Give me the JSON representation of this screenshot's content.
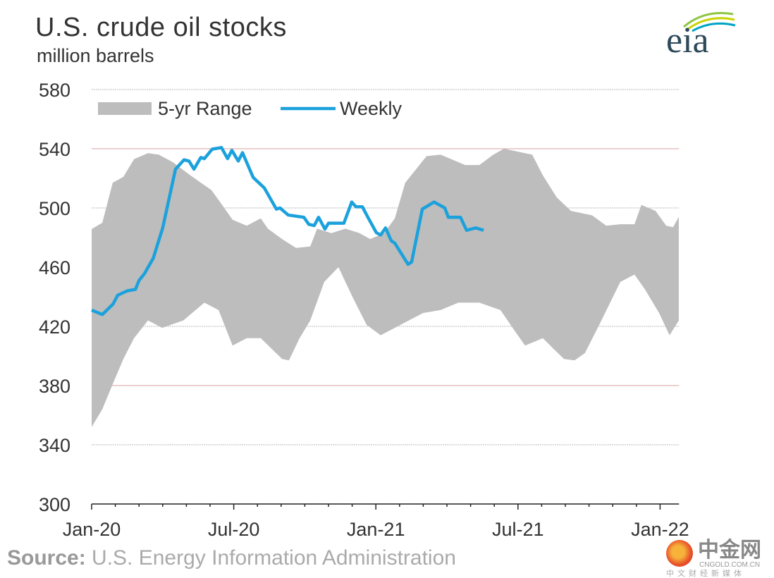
{
  "title": "U.S. crude oil stocks",
  "subtitle": "million barrels",
  "logo": "eia",
  "source_label": "Source:",
  "source_text": "U.S. Energy Information Administration",
  "watermark": {
    "name": "中金网",
    "url": "CNGOLD.COM.CN",
    "tagline": "中文财经新媒体"
  },
  "colors": {
    "range": "#bdbdbd",
    "weekly": "#1ba1dc",
    "grid": "#bbbbbb",
    "grid_red": "#d9a0a0"
  },
  "chart_data": {
    "type": "area",
    "title": "U.S. crude oil stocks",
    "ylabel": "million barrels",
    "xlabel": "",
    "ylim": [
      300,
      580
    ],
    "yticks": [
      300,
      340,
      380,
      420,
      460,
      500,
      540,
      580
    ],
    "xlim_months_from_jan20": [
      0,
      24.8
    ],
    "xticks": [
      {
        "label": "Jan-20",
        "m": 0
      },
      {
        "label": "Jul-20",
        "m": 6
      },
      {
        "label": "Jan-21",
        "m": 12
      },
      {
        "label": "Jul-21",
        "m": 18
      },
      {
        "label": "Jan-22",
        "m": 24
      }
    ],
    "legend": [
      "5-yr Range",
      "Weekly"
    ],
    "legend_position": "top-left",
    "grid": true,
    "series": [
      {
        "name": "5-yr Range",
        "type": "band",
        "upper": [
          [
            0,
            485.7
          ],
          [
            0.45,
            490
          ],
          [
            0.89,
            517
          ],
          [
            1.34,
            521
          ],
          [
            1.79,
            533
          ],
          [
            2.38,
            537
          ],
          [
            2.83,
            536
          ],
          [
            3.42,
            531
          ],
          [
            4.17,
            522
          ],
          [
            5.06,
            512
          ],
          [
            5.51,
            502
          ],
          [
            5.95,
            492
          ],
          [
            6.55,
            488
          ],
          [
            7.14,
            493
          ],
          [
            7.44,
            486
          ],
          [
            8.04,
            479
          ],
          [
            8.63,
            473
          ],
          [
            9.23,
            474
          ],
          [
            9.52,
            486
          ],
          [
            10.12,
            483
          ],
          [
            10.71,
            486
          ],
          [
            11.31,
            483
          ],
          [
            11.76,
            479
          ],
          [
            12.35,
            483
          ],
          [
            12.8,
            493
          ],
          [
            13.24,
            517
          ],
          [
            13.69,
            526
          ],
          [
            14.14,
            535
          ],
          [
            14.73,
            536
          ],
          [
            15.18,
            533
          ],
          [
            15.77,
            529
          ],
          [
            16.37,
            529
          ],
          [
            16.96,
            536
          ],
          [
            17.41,
            540
          ],
          [
            18.01,
            538
          ],
          [
            18.6,
            536
          ],
          [
            19.05,
            522
          ],
          [
            19.64,
            507
          ],
          [
            20.24,
            498
          ],
          [
            21.13,
            495
          ],
          [
            21.73,
            488
          ],
          [
            22.32,
            489
          ],
          [
            22.92,
            489
          ],
          [
            23.21,
            502
          ],
          [
            23.81,
            498
          ],
          [
            24.26,
            488
          ],
          [
            24.55,
            487
          ],
          [
            24.79,
            494
          ]
        ],
        "lower": [
          [
            0,
            352
          ],
          [
            0.45,
            364
          ],
          [
            0.89,
            381
          ],
          [
            1.34,
            398
          ],
          [
            1.79,
            412
          ],
          [
            2.38,
            424
          ],
          [
            2.98,
            419
          ],
          [
            3.87,
            424
          ],
          [
            4.76,
            436
          ],
          [
            5.36,
            431
          ],
          [
            5.95,
            407
          ],
          [
            6.55,
            412
          ],
          [
            7.14,
            412
          ],
          [
            7.59,
            405
          ],
          [
            8.04,
            398
          ],
          [
            8.33,
            397
          ],
          [
            8.78,
            412
          ],
          [
            9.23,
            424
          ],
          [
            9.82,
            450
          ],
          [
            10.42,
            460
          ],
          [
            11.01,
            440
          ],
          [
            11.61,
            421
          ],
          [
            12.2,
            414
          ],
          [
            12.8,
            419
          ],
          [
            13.39,
            424
          ],
          [
            13.99,
            429
          ],
          [
            14.73,
            431
          ],
          [
            15.48,
            436
          ],
          [
            16.37,
            436
          ],
          [
            17.26,
            431
          ],
          [
            17.86,
            417
          ],
          [
            18.3,
            407
          ],
          [
            19.05,
            412
          ],
          [
            19.49,
            405
          ],
          [
            19.94,
            398
          ],
          [
            20.39,
            397
          ],
          [
            20.83,
            402
          ],
          [
            21.43,
            421
          ],
          [
            22.32,
            450
          ],
          [
            22.92,
            455
          ],
          [
            23.36,
            445
          ],
          [
            23.96,
            429
          ],
          [
            24.4,
            414
          ],
          [
            24.79,
            424
          ]
        ]
      },
      {
        "name": "Weekly",
        "type": "line",
        "points": [
          [
            0,
            431
          ],
          [
            0.45,
            428
          ],
          [
            0.9,
            435
          ],
          [
            1.1,
            441
          ],
          [
            1.5,
            444
          ],
          [
            1.85,
            445
          ],
          [
            2.0,
            451
          ],
          [
            2.23,
            455.6
          ],
          [
            2.6,
            466
          ],
          [
            3.0,
            486.5
          ],
          [
            3.54,
            526.2
          ],
          [
            3.9,
            532.5
          ],
          [
            4.11,
            531.7
          ],
          [
            4.32,
            526.2
          ],
          [
            4.61,
            534.1
          ],
          [
            4.76,
            533.3
          ],
          [
            5.09,
            539.7
          ],
          [
            5.48,
            540.8
          ],
          [
            5.74,
            533.3
          ],
          [
            5.92,
            538.9
          ],
          [
            6.19,
            531.7
          ],
          [
            6.37,
            537.3
          ],
          [
            6.82,
            520.6
          ],
          [
            7.29,
            513.5
          ],
          [
            7.8,
            499.2
          ],
          [
            7.95,
            500
          ],
          [
            8.3,
            495.2
          ],
          [
            8.96,
            493.7
          ],
          [
            9.17,
            488.9
          ],
          [
            9.4,
            488.1
          ],
          [
            9.58,
            493.7
          ],
          [
            9.85,
            485.7
          ],
          [
            10.0,
            489.7
          ],
          [
            10.65,
            489.7
          ],
          [
            10.98,
            504
          ],
          [
            11.16,
            500.8
          ],
          [
            11.43,
            500.8
          ],
          [
            11.64,
            494.4
          ],
          [
            12.02,
            483.3
          ],
          [
            12.2,
            481.7
          ],
          [
            12.41,
            486.5
          ],
          [
            12.65,
            477.8
          ],
          [
            12.8,
            476.2
          ],
          [
            13.36,
            461.9
          ],
          [
            13.51,
            463.5
          ],
          [
            13.96,
            499.2
          ],
          [
            14.46,
            504
          ],
          [
            14.91,
            500
          ],
          [
            15.06,
            493.7
          ],
          [
            15.57,
            493.7
          ],
          [
            15.83,
            484.9
          ],
          [
            16.22,
            486.5
          ],
          [
            16.55,
            484.9
          ]
        ]
      }
    ]
  }
}
